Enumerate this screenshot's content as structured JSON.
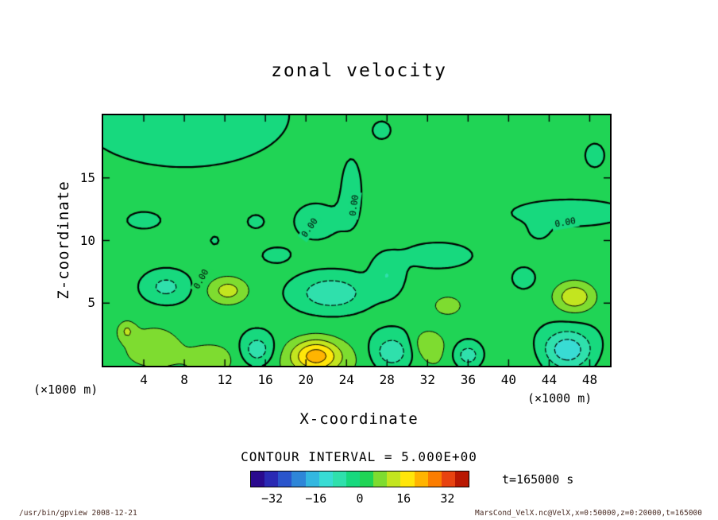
{
  "figure": {
    "contour_interval_label": "CONTOUR INTERVAL = 5.000E+00",
    "time_label": "t=165000 s",
    "footer_left": "/usr/bin/gpview  2008-12-21",
    "footer_right": "MarsCond_VelX.nc@VelX,x=0:50000,z=0:20000,t=165000"
  },
  "chart_data": {
    "type": "filled-contour",
    "title": "zonal velocity",
    "xlabel": "X-coordinate",
    "ylabel": "Z-coordinate",
    "x_unit_label": "(×1000 m)",
    "z_unit_label": "(×1000 m)",
    "x_range": [
      0,
      50
    ],
    "z_range": [
      0,
      20
    ],
    "x_ticks": [
      4,
      8,
      12,
      16,
      20,
      24,
      28,
      32,
      36,
      40,
      44,
      48
    ],
    "z_ticks": [
      5,
      10,
      15
    ],
    "contour_interval": 5.0,
    "zero_label": "0.00",
    "contour_levels_solid": [
      0,
      5,
      10,
      15,
      20,
      25
    ],
    "contour_levels_dashed": [
      -5,
      -10,
      -15,
      -20
    ],
    "colorbar": {
      "vmin": -40,
      "vmax": 40,
      "tick_values": [
        -32,
        -16,
        0,
        16,
        32
      ],
      "tick_labels": [
        "−32",
        "−16",
        "0",
        "16",
        "32"
      ],
      "colors": [
        "#2a0a8e",
        "#2a2ab4",
        "#2a55cc",
        "#2e86d8",
        "#33b7e0",
        "#38dcd4",
        "#2fe0ac",
        "#17d97e",
        "#20d455",
        "#7edc30",
        "#c3e51f",
        "#ffe60a",
        "#ffb400",
        "#fb7d00",
        "#e84310",
        "#b81702"
      ]
    },
    "field": {
      "base": 1.2,
      "gaussians": [
        [
          8,
          20,
          -3.5,
          10,
          4
        ],
        [
          21,
          11.5,
          -2.0,
          3,
          2
        ],
        [
          24.5,
          14,
          -2.2,
          1.2,
          3
        ],
        [
          27.5,
          18.8,
          -1.6,
          1.5,
          1.2
        ],
        [
          46,
          12.2,
          -2.0,
          8,
          1.5
        ],
        [
          48.5,
          16.8,
          -1.7,
          1.6,
          1.6
        ],
        [
          4,
          11.6,
          -1.8,
          2.5,
          1.0
        ],
        [
          15,
          11.5,
          -1.5,
          1.5,
          1.0
        ],
        [
          11,
          10,
          -1.4,
          1.0,
          0.8
        ],
        [
          43,
          10.6,
          -1.3,
          1.2,
          0.8
        ],
        [
          33,
          8.8,
          -2.5,
          4,
          1.2
        ],
        [
          17,
          8.8,
          -1.8,
          2,
          0.9
        ],
        [
          6.2,
          6.3,
          -8,
          2.0,
          1.1
        ],
        [
          12.3,
          6.0,
          11,
          2.0,
          1.1
        ],
        [
          22.5,
          5.8,
          -11,
          3.2,
          1.3
        ],
        [
          28,
          7.2,
          -6,
          1.4,
          1.4
        ],
        [
          34,
          4.8,
          6,
          1.8,
          1.0
        ],
        [
          46.5,
          5.5,
          13,
          2.0,
          1.2
        ],
        [
          41.5,
          7,
          -3,
          1.2,
          0.9
        ],
        [
          25,
          0.5,
          4,
          30,
          1.8
        ],
        [
          21,
          0.8,
          18,
          2.3,
          1.3
        ],
        [
          15.2,
          1.2,
          -12,
          1.7,
          1.3
        ],
        [
          28.5,
          1.0,
          -13,
          2.3,
          1.5
        ],
        [
          36,
          0.8,
          -12,
          1.6,
          1.1
        ],
        [
          45.8,
          1.2,
          -17,
          2.6,
          1.6
        ],
        [
          32,
          1.8,
          7,
          1.5,
          1.1
        ],
        [
          5,
          1.8,
          6,
          2.6,
          1.6
        ],
        [
          2.3,
          2.8,
          8,
          0.9,
          0.8
        ],
        [
          10.5,
          0.6,
          5,
          1.8,
          1.0
        ]
      ]
    },
    "contour_labels": [
      {
        "x": 20.4,
        "z": 11.0,
        "rot": -55
      },
      {
        "x": 24.8,
        "z": 12.8,
        "rot": -82
      },
      {
        "x": 45.6,
        "z": 11.4,
        "rot": -10
      },
      {
        "x": 9.7,
        "z": 6.9,
        "rot": -60
      }
    ]
  }
}
